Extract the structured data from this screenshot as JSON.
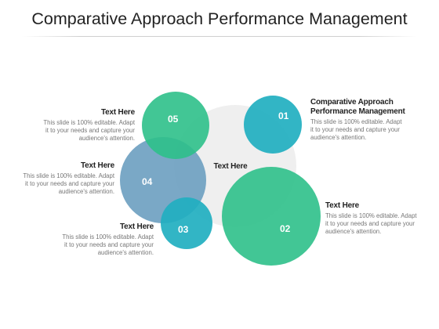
{
  "title": "Comparative Approach Performance Management",
  "center_label": "Text Here",
  "colors": {
    "teal": "#21AFC0",
    "green": "#2EC08A",
    "slate": "#6B9EC0",
    "grey": "#EFEFEF"
  },
  "circles": [
    {
      "number": "01"
    },
    {
      "number": "02"
    },
    {
      "number": "03"
    },
    {
      "number": "04"
    },
    {
      "number": "05"
    }
  ],
  "blocks": {
    "b01": {
      "heading": "Comparative Approach Performance Management",
      "lines": [
        "This slide is 100% editable. Adapt",
        "it to your needs and capture your",
        "audience's attention."
      ]
    },
    "b02": {
      "heading": "Text Here",
      "lines": [
        "This slide is 100% editable. Adapt",
        "it to your needs and capture your",
        "audience's attention."
      ]
    },
    "b03": {
      "heading": "Text Here",
      "lines": [
        "This slide is 100% editable. Adapt",
        "it to your needs and capture your",
        "audience's attention."
      ]
    },
    "b04": {
      "heading": "Text Here",
      "lines": [
        "This slide is 100% editable. Adapt",
        "it to your needs and capture your",
        "audience's attention."
      ]
    },
    "b05": {
      "heading": "Text Here",
      "lines": [
        "This slide is 100% editable. Adapt",
        "it to your needs and capture your",
        "audience's attention."
      ]
    }
  }
}
